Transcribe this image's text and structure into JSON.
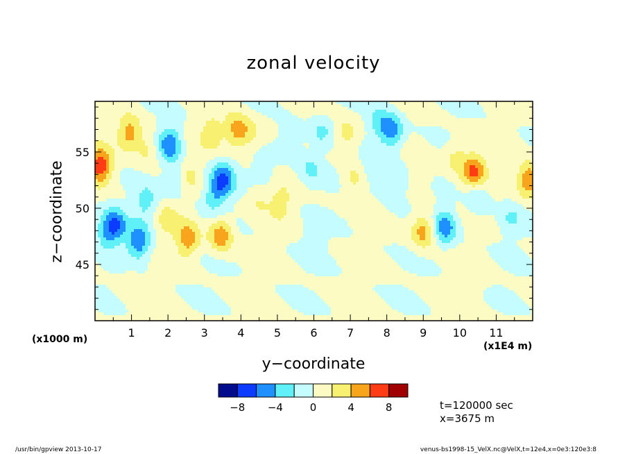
{
  "chart_data": {
    "type": "heatmap",
    "title": "zonal velocity",
    "xlabel": "y−coordinate",
    "ylabel": "z−coordinate",
    "x_unit_label": "(x1E4 m)",
    "y_unit_label": "(x1000 m)",
    "xlim": [
      0,
      12
    ],
    "ylim": [
      40,
      59.5
    ],
    "x_ticks": [
      "1",
      "2",
      "3",
      "4",
      "5",
      "6",
      "7",
      "8",
      "9",
      "10",
      "11"
    ],
    "y_ticks": [
      "45",
      "50",
      "55"
    ],
    "colorbar": {
      "levels": [
        -10,
        -8,
        -6,
        -4,
        -2,
        0,
        2,
        4,
        6,
        8,
        10
      ],
      "tick_labels": [
        "−8",
        "−4",
        "0",
        "4",
        "8"
      ],
      "colors": [
        "#000c8c",
        "#0c3cff",
        "#1e90ff",
        "#5ff0f8",
        "#c4fcff",
        "#fdfbc4",
        "#f8f070",
        "#f8a41c",
        "#ff3c14",
        "#a00000"
      ]
    },
    "annotations": [
      "t=120000 sec",
      "x=3675 m"
    ],
    "features": [
      {
        "y": 0.15,
        "z": 53.8,
        "value": 7.5
      },
      {
        "y": 0.95,
        "z": 56.7,
        "value": 5.0
      },
      {
        "y": 1.45,
        "z": 55.3,
        "value": 2.5
      },
      {
        "y": 2.05,
        "z": 55.7,
        "value": -6.0
      },
      {
        "y": 3.5,
        "z": 52.5,
        "value": -6.5
      },
      {
        "y": 3.25,
        "z": 51.0,
        "value": -3.0
      },
      {
        "y": 3.2,
        "z": 56.7,
        "value": 3.0
      },
      {
        "y": 3.9,
        "z": 56.9,
        "value": 5.0
      },
      {
        "y": 4.3,
        "z": 56.5,
        "value": 2.0
      },
      {
        "y": 0.55,
        "z": 48.5,
        "value": -5.5
      },
      {
        "y": 0.3,
        "z": 47.8,
        "value": -3.0
      },
      {
        "y": 1.2,
        "z": 47.0,
        "value": -6.0
      },
      {
        "y": 1.4,
        "z": 50.5,
        "value": -3.0
      },
      {
        "y": 2.0,
        "z": 49.0,
        "value": 2.5
      },
      {
        "y": 2.55,
        "z": 47.2,
        "value": 5.0
      },
      {
        "y": 3.45,
        "z": 47.6,
        "value": 5.5
      },
      {
        "y": 2.2,
        "z": 52.5,
        "value": -2.5
      },
      {
        "y": 2.6,
        "z": 53.0,
        "value": 2.0
      },
      {
        "y": 4.6,
        "z": 53.0,
        "value": -2.0
      },
      {
        "y": 4.5,
        "z": 51.0,
        "value": 2.0
      },
      {
        "y": 5.1,
        "z": 50.5,
        "value": 2.5
      },
      {
        "y": 5.35,
        "z": 56.0,
        "value": -3.0
      },
      {
        "y": 6.2,
        "z": 56.8,
        "value": -2.5
      },
      {
        "y": 5.9,
        "z": 53.5,
        "value": -2.5
      },
      {
        "y": 6.9,
        "z": 56.5,
        "value": 3.0
      },
      {
        "y": 7.1,
        "z": 52.5,
        "value": 2.5
      },
      {
        "y": 7.8,
        "z": 57.5,
        "value": -3.0
      },
      {
        "y": 8.15,
        "z": 56.8,
        "value": -5.5
      },
      {
        "y": 8.2,
        "z": 52.0,
        "value": -3.0
      },
      {
        "y": 7.6,
        "z": 53.5,
        "value": -2.5
      },
      {
        "y": 9.0,
        "z": 53.5,
        "value": 2.0
      },
      {
        "y": 9.0,
        "z": 48.0,
        "value": 5.0
      },
      {
        "y": 9.6,
        "z": 48.3,
        "value": -5.5
      },
      {
        "y": 10.4,
        "z": 53.3,
        "value": 6.0
      },
      {
        "y": 9.9,
        "z": 54.5,
        "value": 2.5
      },
      {
        "y": 10.5,
        "z": 51.0,
        "value": -2.5
      },
      {
        "y": 11.9,
        "z": 52.5,
        "value": 6.5
      },
      {
        "y": 11.4,
        "z": 49.0,
        "value": -2.0
      },
      {
        "y": 6.0,
        "z": 47.0,
        "value": -1.5
      },
      {
        "y": 1.0,
        "z": 43.0,
        "value": 1.0
      },
      {
        "y": 10.5,
        "z": 44.0,
        "value": 1.0
      }
    ]
  },
  "footer": {
    "left": "/usr/bin/gpview   2013-10-17",
    "right": "venus-bs1998-15_VelX.nc@VelX,t=12e4,x=0e3:120e3:8"
  }
}
